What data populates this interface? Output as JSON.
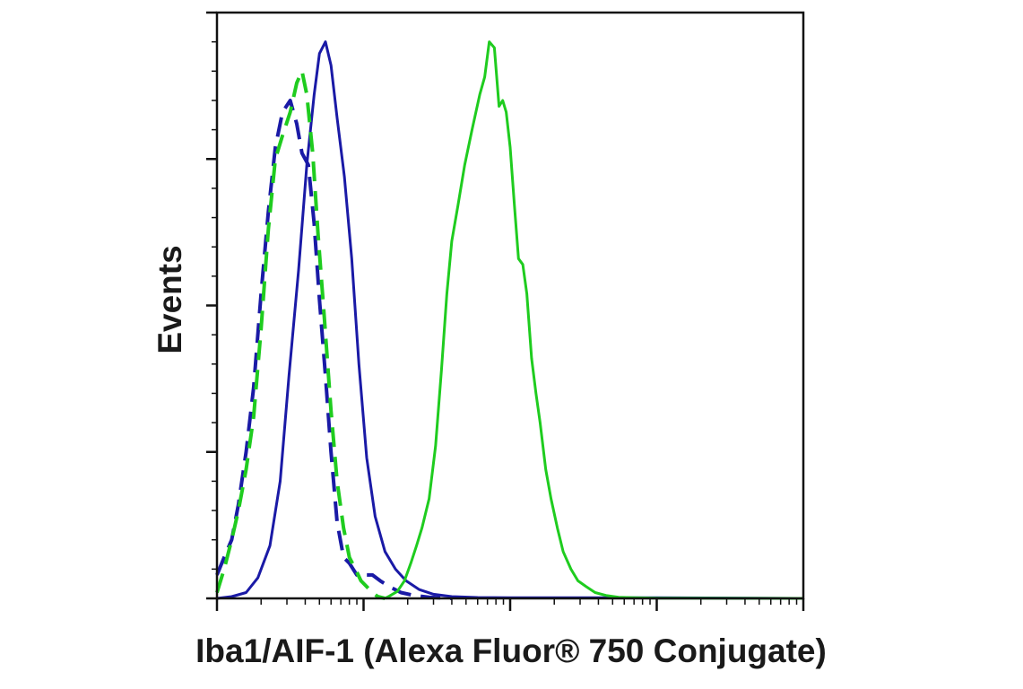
{
  "chart_data": {
    "type": "line",
    "xlabel": "Iba1/AIF-1 (Alexa Fluor® 750 Conjugate)",
    "ylabel": "Events",
    "x_scale": "log",
    "y_scale": "linear",
    "xlim": [
      1,
      10000
    ],
    "ylim": [
      0,
      100
    ],
    "grid": false,
    "legend": "none",
    "series": [
      {
        "color": "#1a1aa6",
        "dash": "solid",
        "x": [
          1.0,
          1.26,
          1.58,
          1.9,
          2.3,
          2.7,
          3.1,
          3.6,
          4.1,
          4.6,
          5.0,
          5.5,
          6.0,
          6.6,
          7.4,
          8.3,
          9.3,
          10.5,
          12,
          14,
          16.5,
          19.5,
          24,
          30,
          40,
          60,
          100,
          1000,
          10000
        ],
        "y": [
          0,
          0.3,
          1.0,
          3.5,
          9,
          20,
          38,
          56,
          74,
          86,
          93,
          95,
          91,
          82,
          72,
          58,
          40,
          24,
          14,
          8,
          5,
          3,
          1.5,
          0.7,
          0.3,
          0.15,
          0.1,
          0.1,
          0
        ]
      },
      {
        "color": "#1a1aa6",
        "dash": "dashed",
        "x": [
          1.0,
          1.12,
          1.26,
          1.4,
          1.58,
          1.78,
          2.0,
          2.24,
          2.5,
          2.8,
          3.16,
          3.5,
          3.8,
          4.2,
          4.6,
          5.0,
          5.5,
          6.0,
          6.6,
          7.3,
          8.0,
          9.0,
          10.0,
          11.5,
          13.0,
          15.0,
          18.0,
          22.0,
          28.0,
          40.0
        ],
        "y": [
          4,
          7,
          10,
          16,
          25,
          36,
          52,
          66,
          77,
          83,
          85,
          81,
          76,
          74,
          64,
          51,
          38,
          25,
          13,
          7,
          6,
          4,
          4,
          4,
          3,
          2,
          1,
          0.5,
          0.2,
          0
        ]
      },
      {
        "color": "#1fcc1f",
        "dash": "dashed",
        "x": [
          1.0,
          1.12,
          1.26,
          1.4,
          1.58,
          1.78,
          2.0,
          2.24,
          2.5,
          2.8,
          3.16,
          3.5,
          3.8,
          4.1,
          4.5,
          4.9,
          5.4,
          6.0,
          6.6,
          7.3,
          8.0,
          8.8,
          9.6,
          10.5,
          11.5,
          12.5,
          14.0
        ],
        "y": [
          1,
          5,
          10,
          15,
          22,
          31,
          46,
          63,
          75,
          79,
          83,
          88,
          90,
          86,
          76,
          62,
          48,
          32,
          20,
          12,
          7,
          5,
          3,
          2,
          1,
          0.3,
          0
        ]
      },
      {
        "color": "#1fcc1f",
        "dash": "solid",
        "x": [
          14,
          15,
          17,
          19,
          21,
          23,
          25,
          28,
          31,
          34,
          37,
          40,
          44,
          49,
          55,
          62,
          67,
          72,
          78,
          84,
          89,
          94,
          100,
          107,
          114,
          122,
          130,
          140,
          150,
          160,
          175,
          190,
          210,
          230,
          260,
          290,
          330,
          380,
          450,
          550,
          700,
          1000,
          10000
        ],
        "y": [
          0,
          0.4,
          1.2,
          3,
          6,
          9,
          12,
          17,
          26,
          39,
          52,
          61,
          67,
          74,
          80,
          86,
          89,
          95,
          94,
          84,
          85,
          83,
          77,
          67,
          58,
          57,
          52,
          41,
          35,
          30,
          22,
          17,
          12,
          8,
          5,
          3,
          2,
          1,
          0.5,
          0.2,
          0.1,
          0.05,
          0
        ]
      }
    ]
  }
}
